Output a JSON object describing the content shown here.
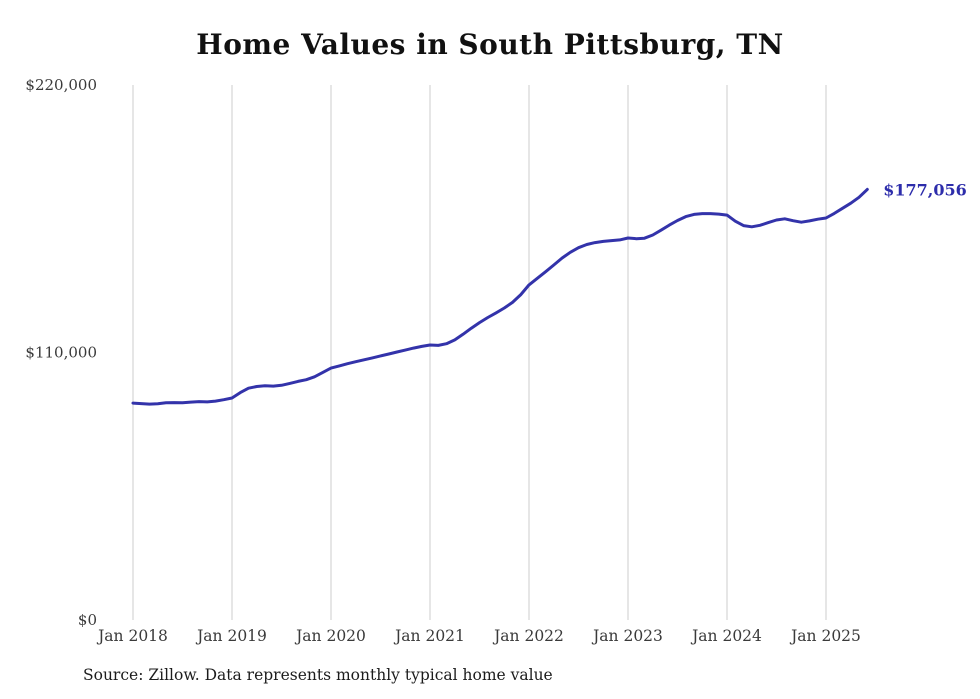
{
  "title": "Home Values in South Pittsburg, TN",
  "source_note": "Source: Zillow. Data represents monthly typical home value",
  "chart_data": {
    "type": "line",
    "title": "Home Values in South Pittsburg, TN",
    "ylabel": "",
    "xlabel": "",
    "unit": "USD",
    "ylim": [
      0,
      220000
    ],
    "yticks": [
      {
        "value": 0,
        "label": "$0"
      },
      {
        "value": 110000,
        "label": "$110,000"
      },
      {
        "value": 220000,
        "label": "$220,000"
      }
    ],
    "xticks": [
      "Jan 2018",
      "Jan 2019",
      "Jan 2020",
      "Jan 2021",
      "Jan 2022",
      "Jan 2023",
      "Jan 2024",
      "Jan 2025"
    ],
    "start_month": "2018-01",
    "end_month": "2025-06",
    "grid": "vertical-only",
    "legend": "none",
    "line_color": "#3333aa",
    "grid_color": "#cccccc",
    "tick_color": "#3a3a3a",
    "end_label": "$177,056",
    "end_label_color": "#2d2dab",
    "values": [
      89200,
      89000,
      88800,
      88900,
      89300,
      89400,
      89300,
      89600,
      89800,
      89700,
      90000,
      90600,
      91300,
      93500,
      95300,
      96000,
      96300,
      96200,
      96500,
      97300,
      98100,
      98800,
      100000,
      101800,
      103600,
      104500,
      105400,
      106200,
      107000,
      107800,
      108600,
      109400,
      110200,
      111000,
      111800,
      112500,
      113100,
      112900,
      113600,
      115200,
      117500,
      120000,
      122300,
      124400,
      126300,
      128300,
      130600,
      133800,
      137800,
      140500,
      143200,
      146000,
      148800,
      151200,
      153100,
      154400,
      155200,
      155700,
      156000,
      156300,
      157100,
      156800,
      157000,
      158300,
      160300,
      162400,
      164300,
      165900,
      166800,
      167100,
      167100,
      166900,
      166500,
      164000,
      162200,
      161700,
      162300,
      163400,
      164500,
      165000,
      164200,
      163600,
      164100,
      164800,
      165300,
      167200,
      169300,
      171400,
      173800,
      177056
    ]
  }
}
